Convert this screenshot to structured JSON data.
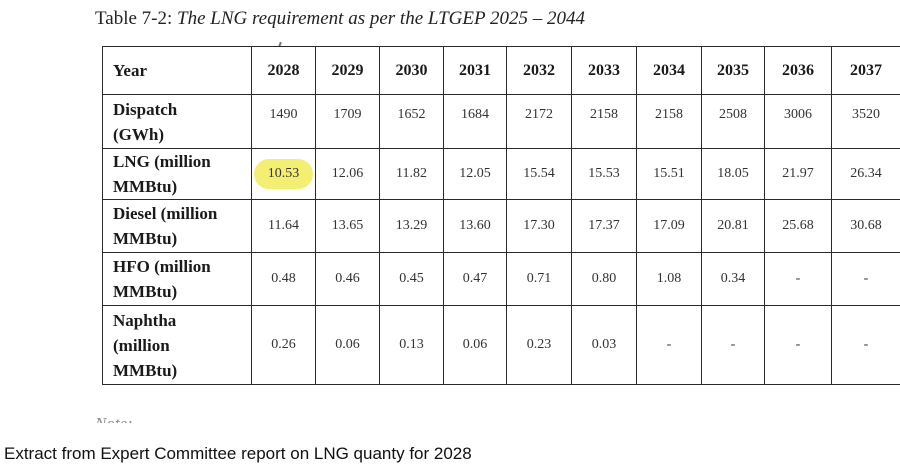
{
  "table": {
    "title_prefix": "Table 7-2: ",
    "title_text": "The LNG requirement as per the LTGEP 2025 – 2044",
    "header_label": "Year",
    "years": [
      "2028",
      "2029",
      "2030",
      "2031",
      "2032",
      "2033",
      "2034",
      "2035",
      "2036",
      "2037"
    ],
    "rows": [
      {
        "label": [
          "Dispatch",
          "(GWh)"
        ],
        "values": [
          "1490",
          "1709",
          "1652",
          "1684",
          "2172",
          "2158",
          "2158",
          "2508",
          "3006",
          "3520"
        ]
      },
      {
        "label": [
          "LNG (million",
          "MMBtu)"
        ],
        "values": [
          "10.53",
          "12.06",
          "11.82",
          "12.05",
          "15.54",
          "15.53",
          "15.51",
          "18.05",
          "21.97",
          "26.34"
        ],
        "highlighted_value_index": 0,
        "highlight_color": "#f3ef72"
      },
      {
        "label": [
          "Diesel (million",
          "MMBtu)"
        ],
        "values": [
          "11.64",
          "13.65",
          "13.29",
          "13.60",
          "17.30",
          "17.37",
          "17.09",
          "20.81",
          "25.68",
          "30.68"
        ]
      },
      {
        "label": [
          "HFO (million",
          "MMBtu)"
        ],
        "values": [
          "0.48",
          "0.46",
          "0.45",
          "0.47",
          "0.71",
          "0.80",
          "1.08",
          "0.34",
          "-",
          "-"
        ]
      },
      {
        "label": [
          "Naphtha",
          "(million",
          "MMBtu)"
        ],
        "values": [
          "0.26",
          "0.06",
          "0.13",
          "0.06",
          "0.23",
          "0.03",
          "-",
          "-",
          "-",
          "-"
        ]
      }
    ]
  },
  "note_text": "Note:",
  "caption": "Extract from Expert Committee report on LNG quanty for 2028"
}
